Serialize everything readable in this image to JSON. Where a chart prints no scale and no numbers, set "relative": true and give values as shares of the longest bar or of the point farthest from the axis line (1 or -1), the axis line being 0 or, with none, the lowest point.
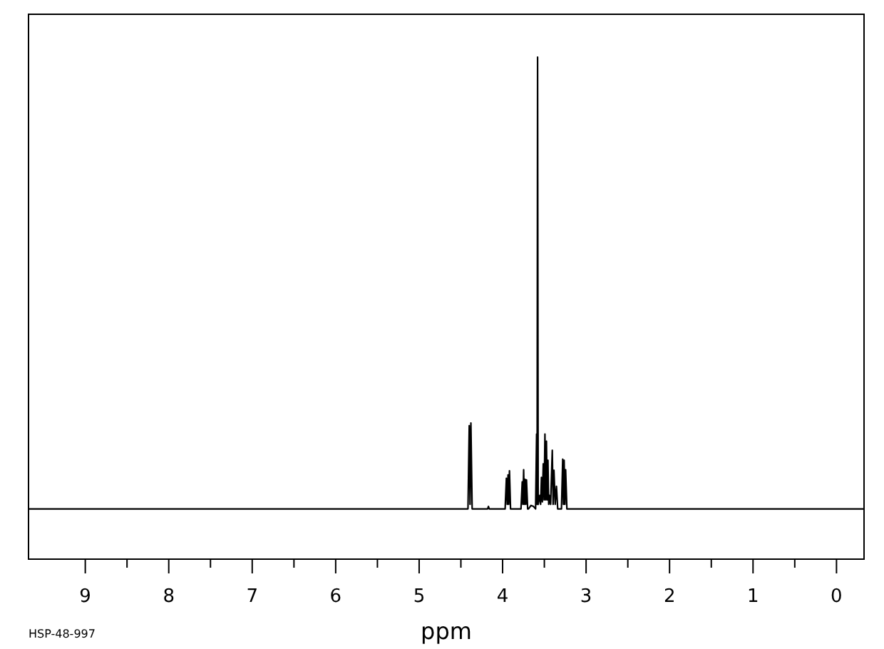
{
  "chart_data": {
    "type": "line",
    "relative": true,
    "xlabel": "ppm",
    "annotations": [
      "HSP-48-997"
    ],
    "tick_labels": "x",
    "xlim": [
      9.68,
      -0.33
    ],
    "xticks": [
      9,
      {
        "value": 8.5,
        "label": null
      },
      8,
      {
        "value": 7.5,
        "label": null
      },
      7,
      {
        "value": 6.5,
        "label": null
      },
      6,
      {
        "value": 5.5,
        "label": null
      },
      5,
      {
        "value": 4.5,
        "label": null
      },
      4,
      {
        "value": 3.5,
        "label": null
      },
      3,
      {
        "value": 2.5,
        "label": null
      },
      2,
      {
        "value": 1.5,
        "label": null
      },
      1,
      {
        "value": 0.5,
        "label": null
      },
      0
    ],
    "series": [
      {
        "color": "#000000",
        "x": [
          9.68,
          4.415,
          4.4,
          4.39,
          4.38,
          4.365,
          4.18,
          4.17,
          4.16,
          3.97,
          3.955,
          3.945,
          3.935,
          3.927,
          3.918,
          3.905,
          3.78,
          3.765,
          3.757,
          3.748,
          3.74,
          3.731,
          3.722,
          3.714,
          3.7,
          3.69,
          3.66,
          3.63,
          3.605,
          3.593,
          3.587,
          3.581,
          3.574,
          3.555,
          3.545,
          3.535,
          3.524,
          3.513,
          3.503,
          3.493,
          3.484,
          3.475,
          3.466,
          3.457,
          3.448,
          3.44,
          3.425,
          3.405,
          3.395,
          3.385,
          3.37,
          3.355,
          3.34,
          3.295,
          3.28,
          3.271,
          3.263,
          3.254,
          3.245,
          3.23,
          -0.33
        ],
        "values": [
          0.1,
          0.1,
          0.266,
          0.109,
          0.271,
          0.1,
          0.1,
          0.105,
          0.1,
          0.1,
          0.161,
          0.109,
          0.168,
          0.109,
          0.176,
          0.1,
          0.1,
          0.154,
          0.109,
          0.178,
          0.109,
          0.159,
          0.109,
          0.158,
          0.1,
          0.1,
          0.107,
          0.105,
          0.1,
          0.249,
          0.109,
          1,
          0.109,
          0.127,
          0.109,
          0.163,
          0.114,
          0.19,
          0.118,
          0.249,
          0.118,
          0.235,
          0.118,
          0.197,
          0.109,
          0.127,
          0.109,
          0.217,
          0.109,
          0.177,
          0.109,
          0.145,
          0.1,
          0.1,
          0.199,
          0.109,
          0.197,
          0.109,
          0.178,
          0.1,
          0.1
        ]
      }
    ]
  }
}
